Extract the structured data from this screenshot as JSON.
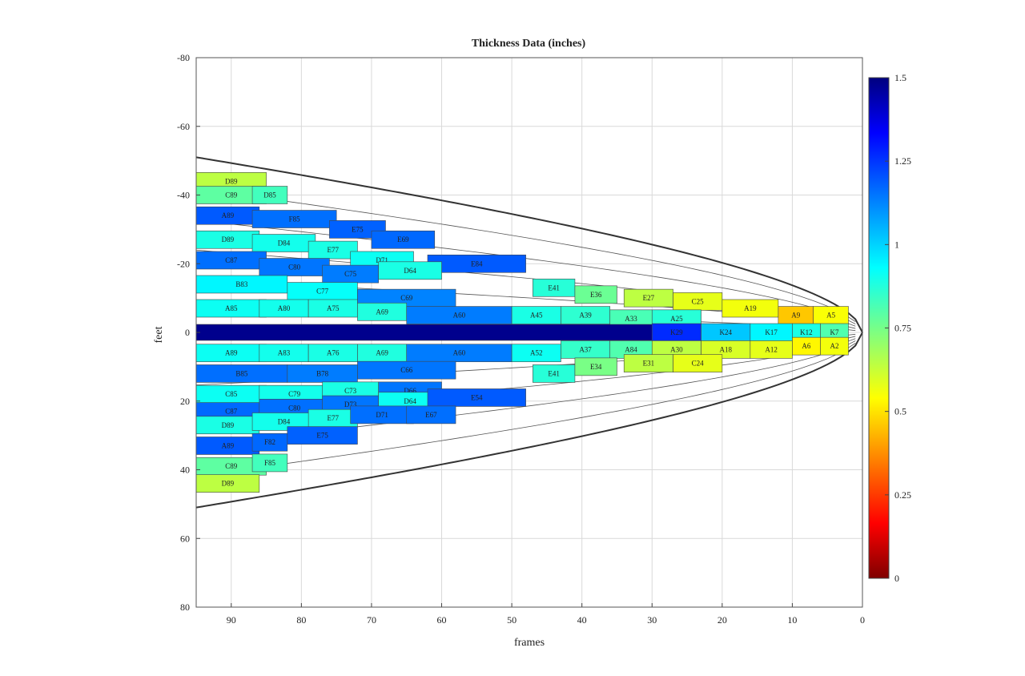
{
  "chart_data": {
    "type": "heatmap",
    "title": "Thickness Data (inches)",
    "xlabel": "frames",
    "ylabel": "feet",
    "xlim": [
      95,
      0
    ],
    "ylim": [
      80,
      -80
    ],
    "x_ticks": [
      "90",
      "80",
      "70",
      "60",
      "50",
      "40",
      "30",
      "20",
      "10",
      "0"
    ],
    "y_ticks": [
      "-80",
      "-60",
      "-40",
      "-20",
      "0",
      "20",
      "40",
      "60",
      "80"
    ],
    "colorbar": {
      "min": 0,
      "max": 1.5,
      "ticks": [
        "0",
        "0.25",
        "0.5",
        "0.75",
        "1",
        "1.25",
        "1.5"
      ],
      "colormap": "jet-reversed"
    },
    "grid": true,
    "cells": [
      {
        "label": "D89",
        "x1": 95,
        "x2": 85,
        "y": -44,
        "v": 0.66
      },
      {
        "label": "C89",
        "x1": 95,
        "x2": 85,
        "y": -40,
        "v": 0.8
      },
      {
        "label": "D85",
        "x1": 87,
        "x2": 82,
        "y": -40,
        "v": 0.84
      },
      {
        "label": "A89",
        "x1": 95,
        "x2": 86,
        "y": -34,
        "v": 1.18
      },
      {
        "label": "F85",
        "x1": 87,
        "x2": 75,
        "y": -33,
        "v": 1.15
      },
      {
        "label": "E75",
        "x1": 76,
        "x2": 68,
        "y": -30,
        "v": 1.17
      },
      {
        "label": "E69",
        "x1": 70,
        "x2": 61,
        "y": -27,
        "v": 1.16
      },
      {
        "label": "D89",
        "x1": 95,
        "x2": 86,
        "y": -27,
        "v": 0.9
      },
      {
        "label": "D84",
        "x1": 87,
        "x2": 78,
        "y": -26,
        "v": 0.91
      },
      {
        "label": "E77",
        "x1": 79,
        "x2": 72,
        "y": -24,
        "v": 0.9
      },
      {
        "label": "D71",
        "x1": 73,
        "x2": 64,
        "y": -21,
        "v": 0.92
      },
      {
        "label": "E84",
        "x1": 62,
        "x2": 48,
        "y": -20,
        "v": 1.18
      },
      {
        "label": "C87",
        "x1": 95,
        "x2": 85,
        "y": -21,
        "v": 1.15
      },
      {
        "label": "C80",
        "x1": 86,
        "x2": 76,
        "y": -19,
        "v": 1.14
      },
      {
        "label": "C75",
        "x1": 77,
        "x2": 69,
        "y": -17,
        "v": 1.13
      },
      {
        "label": "D64",
        "x1": 69,
        "x2": 60,
        "y": -18,
        "v": 0.9
      },
      {
        "label": "E41",
        "x1": 47,
        "x2": 41,
        "y": -13,
        "v": 0.88
      },
      {
        "label": "E36",
        "x1": 41,
        "x2": 35,
        "y": -11,
        "v": 0.78
      },
      {
        "label": "E27",
        "x1": 34,
        "x2": 27,
        "y": -10,
        "v": 0.66
      },
      {
        "label": "C25",
        "x1": 27,
        "x2": 20,
        "y": -9,
        "v": 0.6
      },
      {
        "label": "A19",
        "x1": 20,
        "x2": 12,
        "y": -7,
        "v": 0.58
      },
      {
        "label": "A9",
        "x1": 12,
        "x2": 7,
        "y": -5,
        "v": 0.48
      },
      {
        "label": "A5",
        "x1": 7,
        "x2": 2,
        "y": -5,
        "v": 0.57
      },
      {
        "label": "B83",
        "x1": 95,
        "x2": 82,
        "y": -14,
        "v": 0.95
      },
      {
        "label": "C77",
        "x1": 82,
        "x2": 72,
        "y": -12,
        "v": 0.93
      },
      {
        "label": "C69",
        "x1": 72,
        "x2": 58,
        "y": -10,
        "v": 1.12
      },
      {
        "label": "A85",
        "x1": 95,
        "x2": 85,
        "y": -7,
        "v": 0.92
      },
      {
        "label": "A80",
        "x1": 86,
        "x2": 79,
        "y": -7,
        "v": 0.91
      },
      {
        "label": "A75",
        "x1": 79,
        "x2": 72,
        "y": -7,
        "v": 0.9
      },
      {
        "label": "A69",
        "x1": 72,
        "x2": 65,
        "y": -6,
        "v": 0.89
      },
      {
        "label": "A60",
        "x1": 65,
        "x2": 50,
        "y": -5,
        "v": 1.13
      },
      {
        "label": "A45",
        "x1": 50,
        "x2": 43,
        "y": -5,
        "v": 0.9
      },
      {
        "label": "A39",
        "x1": 43,
        "x2": 36,
        "y": -5,
        "v": 0.87
      },
      {
        "label": "A33",
        "x1": 36,
        "x2": 30,
        "y": -4,
        "v": 0.83
      },
      {
        "label": "A25",
        "x1": 30,
        "x2": 23,
        "y": -4,
        "v": 0.88
      },
      {
        "label": "K",
        "x1": 95,
        "x2": 30,
        "y": 0,
        "v": 1.48
      },
      {
        "label": "K29",
        "x1": 30,
        "x2": 23,
        "y": 0,
        "v": 1.25
      },
      {
        "label": "K24",
        "x1": 23,
        "x2": 16,
        "y": 0,
        "v": 1.02
      },
      {
        "label": "K17",
        "x1": 16,
        "x2": 10,
        "y": 0,
        "v": 0.95
      },
      {
        "label": "K12",
        "x1": 10,
        "x2": 6,
        "y": 0,
        "v": 0.9
      },
      {
        "label": "K7",
        "x1": 6,
        "x2": 2,
        "y": 0,
        "v": 0.82
      },
      {
        "label": "A89",
        "x1": 95,
        "x2": 85,
        "y": 6,
        "v": 0.92
      },
      {
        "label": "A83",
        "x1": 86,
        "x2": 79,
        "y": 6,
        "v": 0.91
      },
      {
        "label": "A76",
        "x1": 79,
        "x2": 72,
        "y": 6,
        "v": 0.9
      },
      {
        "label": "A69",
        "x1": 72,
        "x2": 65,
        "y": 6,
        "v": 0.89
      },
      {
        "label": "A60",
        "x1": 65,
        "x2": 50,
        "y": 6,
        "v": 1.13
      },
      {
        "label": "A52",
        "x1": 50,
        "x2": 43,
        "y": 6,
        "v": 0.92
      },
      {
        "label": "A37",
        "x1": 43,
        "x2": 36,
        "y": 5,
        "v": 0.86
      },
      {
        "label": "A84",
        "x1": 36,
        "x2": 30,
        "y": 5,
        "v": 0.82
      },
      {
        "label": "A30",
        "x1": 30,
        "x2": 23,
        "y": 5,
        "v": 0.66
      },
      {
        "label": "A18",
        "x1": 23,
        "x2": 16,
        "y": 5,
        "v": 0.62
      },
      {
        "label": "A12",
        "x1": 16,
        "x2": 10,
        "y": 5,
        "v": 0.6
      },
      {
        "label": "A6",
        "x1": 10,
        "x2": 6,
        "y": 4,
        "v": 0.55
      },
      {
        "label": "A2",
        "x1": 6,
        "x2": 2,
        "y": 4,
        "v": 0.58
      },
      {
        "label": "B85",
        "x1": 95,
        "x2": 82,
        "y": 12,
        "v": 1.15
      },
      {
        "label": "B78",
        "x1": 82,
        "x2": 72,
        "y": 12,
        "v": 1.13
      },
      {
        "label": "C66",
        "x1": 72,
        "x2": 58,
        "y": 11,
        "v": 1.14
      },
      {
        "label": "E41",
        "x1": 47,
        "x2": 41,
        "y": 12,
        "v": 0.88
      },
      {
        "label": "E34",
        "x1": 41,
        "x2": 35,
        "y": 10,
        "v": 0.76
      },
      {
        "label": "E31",
        "x1": 34,
        "x2": 27,
        "y": 9,
        "v": 0.66
      },
      {
        "label": "C24",
        "x1": 27,
        "x2": 20,
        "y": 9,
        "v": 0.6
      },
      {
        "label": "C85",
        "x1": 95,
        "x2": 85,
        "y": 18,
        "v": 0.92
      },
      {
        "label": "C79",
        "x1": 86,
        "x2": 76,
        "y": 18,
        "v": 0.91
      },
      {
        "label": "C73",
        "x1": 77,
        "x2": 69,
        "y": 17,
        "v": 0.9
      },
      {
        "label": "D66",
        "x1": 69,
        "x2": 60,
        "y": 17,
        "v": 1.14
      },
      {
        "label": "C87",
        "x1": 95,
        "x2": 85,
        "y": 23,
        "v": 1.16
      },
      {
        "label": "C80",
        "x1": 86,
        "x2": 76,
        "y": 22,
        "v": 1.15
      },
      {
        "label": "D73",
        "x1": 77,
        "x2": 69,
        "y": 21,
        "v": 1.14
      },
      {
        "label": "D64",
        "x1": 69,
        "x2": 60,
        "y": 20,
        "v": 0.92
      },
      {
        "label": "E54",
        "x1": 62,
        "x2": 48,
        "y": 19,
        "v": 1.18
      },
      {
        "label": "D89",
        "x1": 95,
        "x2": 86,
        "y": 27,
        "v": 0.9
      },
      {
        "label": "D84",
        "x1": 87,
        "x2": 78,
        "y": 26,
        "v": 0.91
      },
      {
        "label": "E77",
        "x1": 79,
        "x2": 72,
        "y": 25,
        "v": 0.9
      },
      {
        "label": "D71",
        "x1": 73,
        "x2": 64,
        "y": 24,
        "v": 1.15
      },
      {
        "label": "E67",
        "x1": 65,
        "x2": 58,
        "y": 24,
        "v": 1.15
      },
      {
        "label": "A89",
        "x1": 95,
        "x2": 86,
        "y": 33,
        "v": 1.18
      },
      {
        "label": "F82",
        "x1": 87,
        "x2": 82,
        "y": 32,
        "v": 1.16
      },
      {
        "label": "E75",
        "x1": 82,
        "x2": 72,
        "y": 30,
        "v": 1.17
      },
      {
        "label": "C89",
        "x1": 95,
        "x2": 85,
        "y": 39,
        "v": 0.8
      },
      {
        "label": "F85",
        "x1": 87,
        "x2": 82,
        "y": 38,
        "v": 0.84
      },
      {
        "label": "D89",
        "x1": 95,
        "x2": 86,
        "y": 44,
        "v": 0.66
      }
    ]
  }
}
